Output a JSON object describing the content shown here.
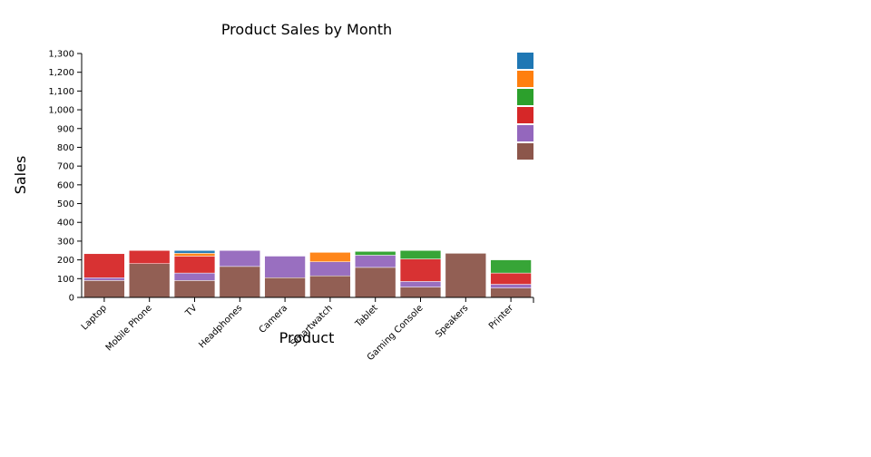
{
  "chart_data": {
    "type": "bar",
    "stacked": true,
    "title": "Product Sales by Month",
    "xlabel": "Product",
    "ylabel": "Sales",
    "ylim": [
      0,
      1300
    ],
    "y_ticks": [
      0,
      100,
      200,
      300,
      400,
      500,
      600,
      700,
      800,
      900,
      1000,
      1100,
      1200,
      1300
    ],
    "y_tick_labels": [
      "0",
      "100",
      "200",
      "300",
      "400",
      "500",
      "600",
      "700",
      "800",
      "900",
      "1,000",
      "1,100",
      "1,200",
      "1,300"
    ],
    "grid": false,
    "legend": {
      "position": "top-right",
      "labels_visible": false
    },
    "categories": [
      "Laptop",
      "Mobile Phone",
      "TV",
      "Headphones",
      "Camera",
      "Smartwatch",
      "Tablet",
      "Gaming Console",
      "Speakers",
      "Printer"
    ],
    "series": [
      {
        "color": "#8c564b",
        "values": [
          90,
          180,
          90,
          165,
          105,
          115,
          160,
          55,
          235,
          50
        ]
      },
      {
        "color": "#9467bd",
        "values": [
          15,
          0,
          40,
          85,
          115,
          75,
          65,
          30,
          0,
          20
        ]
      },
      {
        "color": "#d62728",
        "values": [
          128,
          70,
          90,
          0,
          0,
          0,
          0,
          120,
          0,
          60
        ]
      },
      {
        "color": "#2ca02c",
        "values": [
          0,
          0,
          0,
          0,
          0,
          0,
          20,
          45,
          0,
          70
        ]
      },
      {
        "color": "#ff7f0e",
        "values": [
          0,
          0,
          15,
          0,
          0,
          50,
          0,
          0,
          0,
          0
        ]
      },
      {
        "color": "#1f77b4",
        "values": [
          0,
          0,
          15,
          0,
          0,
          0,
          0,
          0,
          0,
          0
        ]
      }
    ],
    "legend_order": [
      "#1f77b4",
      "#ff7f0e",
      "#2ca02c",
      "#d62728",
      "#9467bd",
      "#8c564b"
    ]
  }
}
